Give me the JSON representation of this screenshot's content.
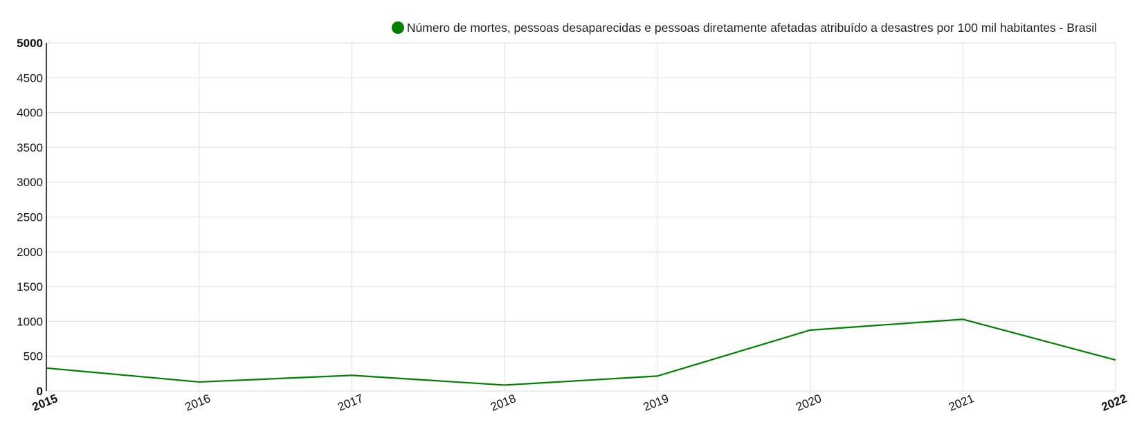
{
  "chart_data": {
    "type": "line",
    "title": "",
    "xlabel": "",
    "ylabel": "",
    "x": [
      "2015",
      "2016",
      "2017",
      "2018",
      "2019",
      "2020",
      "2021",
      "2022"
    ],
    "y_ticks": [
      "0",
      "500",
      "1000",
      "1500",
      "2000",
      "2500",
      "3000",
      "3500",
      "4000",
      "4500",
      "5000"
    ],
    "ylim": [
      0,
      5000
    ],
    "grid": true,
    "legend_position": "top-right",
    "series": [
      {
        "name": "Número de mortes, pessoas desaparecidas e pessoas diretamente afetadas atribuído a desastres por 100 mil habitantes - Brasil",
        "color": "#008000",
        "values": [
          330,
          130,
          225,
          85,
          215,
          875,
          1030,
          445
        ]
      }
    ]
  }
}
